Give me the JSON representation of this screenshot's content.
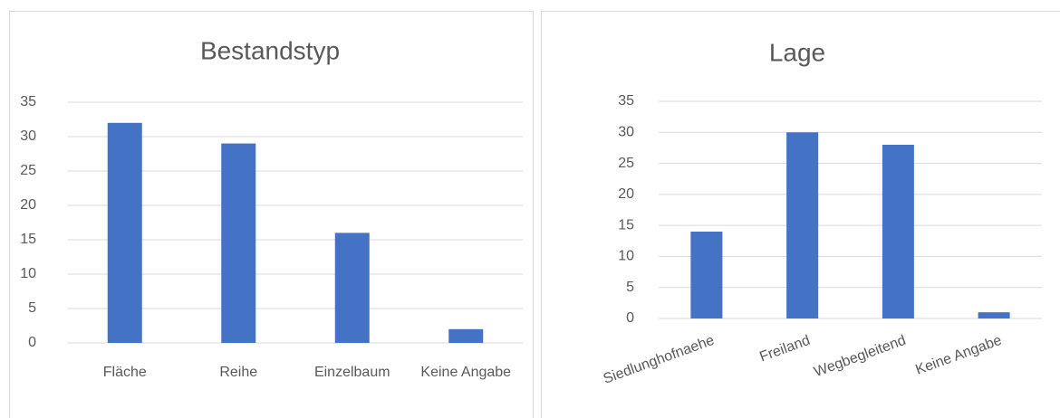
{
  "chart_data": [
    {
      "type": "bar",
      "title": "Bestandstyp",
      "categories": [
        "Fläche",
        "Reihe",
        "Einzelbaum",
        "Keine Angabe"
      ],
      "values": [
        32,
        29,
        16,
        2
      ],
      "color": "#4472c4",
      "ylim": [
        0,
        35
      ],
      "yticks": [
        0,
        5,
        10,
        15,
        20,
        25,
        30,
        35
      ],
      "grid": true
    },
    {
      "type": "bar",
      "title": "Lage",
      "categories": [
        "Siedlunghofnaehe",
        "Freiland",
        "Wegbegleitend",
        "Keine Angabe"
      ],
      "values": [
        14,
        30,
        28,
        1
      ],
      "color": "#4472c4",
      "ylim": [
        0,
        35
      ],
      "yticks": [
        0,
        5,
        10,
        15,
        20,
        25,
        30,
        35
      ],
      "grid": true
    }
  ]
}
